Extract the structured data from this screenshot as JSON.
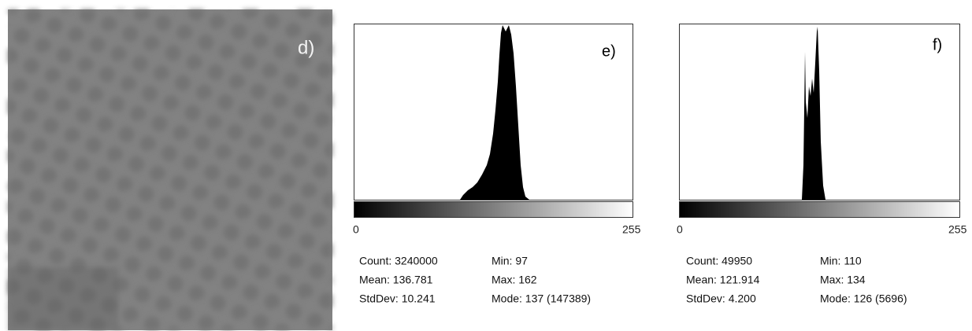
{
  "panels": [
    {
      "label": "d)"
    },
    {
      "label": "e)",
      "axis_min": "0",
      "axis_max": "255",
      "stats": [
        [
          "Count: 3240000",
          "Min: 97"
        ],
        [
          "Mean: 136.781",
          "Max: 162"
        ],
        [
          "StdDev: 10.241",
          "Mode: 137 (147389)"
        ]
      ]
    },
    {
      "label": "f)",
      "axis_min": "0",
      "axis_max": "255",
      "stats": [
        [
          "Count: 49950",
          "Min: 110"
        ],
        [
          "Mean: 121.914",
          "Max: 134"
        ],
        [
          "StdDev: 4.200",
          "Mode: 126 (5696)"
        ]
      ]
    }
  ]
}
